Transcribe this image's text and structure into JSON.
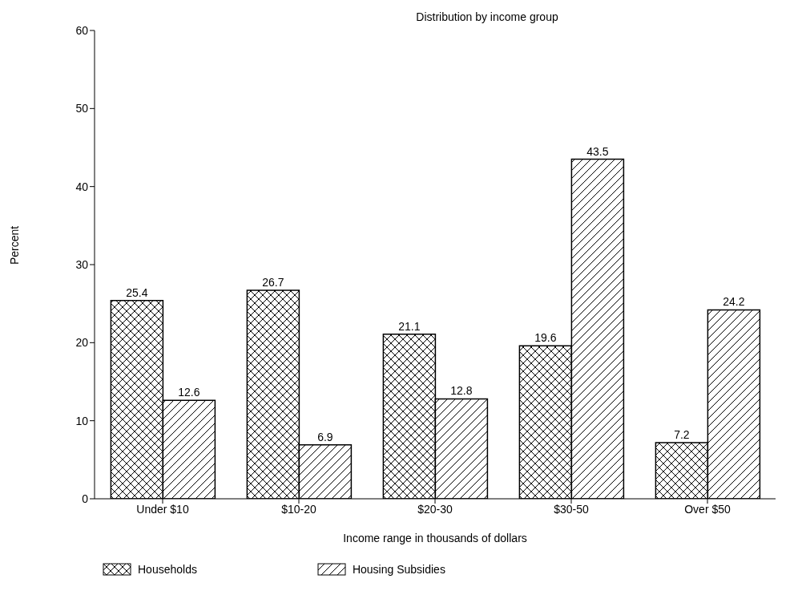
{
  "chart_data": {
    "type": "bar",
    "title": "Distribution by income group",
    "xlabel": "Income range in thousands of dollars",
    "ylabel": "Percent",
    "categories": [
      "Under $10",
      "$10-20",
      "$20-30",
      "$30-50",
      "Over $50"
    ],
    "series": [
      {
        "name": "Households",
        "color": "#000000",
        "values": [
          25.4,
          26.7,
          21.1,
          19.6,
          7.2
        ]
      },
      {
        "name": "Housing Subsidies",
        "color": "#000000",
        "values": [
          12.6,
          6.9,
          12.8,
          43.5,
          24.2
        ]
      }
    ],
    "ylim": [
      0,
      60
    ],
    "yticks": [
      0,
      10,
      20,
      30,
      40,
      50,
      60
    ],
    "grid": false,
    "data_labels": true,
    "legend": "bottom"
  }
}
